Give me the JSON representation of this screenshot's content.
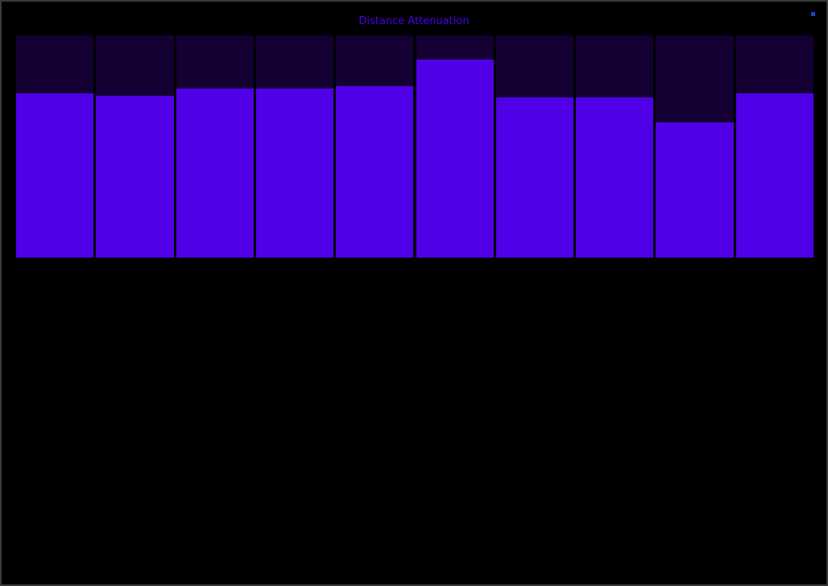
{
  "window": {
    "title": "Distance Attenuation",
    "close_icon": "close-icon"
  },
  "colors": {
    "background": "#000000",
    "border": "#3a3a3a",
    "title": "#4d00e6",
    "track": "#140033",
    "fill": "#5000e6",
    "close": "#1f3fc8"
  },
  "sliders": {
    "count": 10,
    "levels": [
      0.74,
      0.73,
      0.76,
      0.76,
      0.77,
      0.89,
      0.72,
      0.72,
      0.61,
      0.74
    ]
  }
}
